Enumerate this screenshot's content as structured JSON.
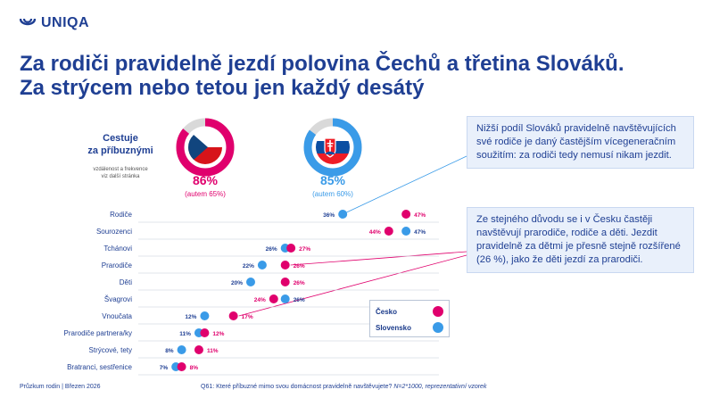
{
  "brand": {
    "logo_text": "UNIQA",
    "logo_icon": "uniqa-logo-icon"
  },
  "title": {
    "line1": "Za rodiči pravidelně jezdí polovina Čechů a třetina Slováků.",
    "line2": "Za strýcem nebo tetou jen každý desátý"
  },
  "side": {
    "heading_line1": "Cestuje",
    "heading_line2": "za příbuznými",
    "sub_line1": "vzdálenost a frekvence",
    "sub_line2": "viz další stránka"
  },
  "countries": [
    {
      "flag_icon": "czech-flag-icon",
      "percent": 0.86,
      "label": "86%",
      "sub": "(autem 65%)",
      "color": "#e0006d"
    },
    {
      "flag_icon": "slovak-flag-icon",
      "percent": 0.85,
      "label": "85%",
      "sub": "(autem 60%)",
      "color": "#3a9be8"
    }
  ],
  "callouts": [
    "Nižší podíl Slováků pravidelně navštěvujících své rodiče je daný častějším vícegeneračním soužitím: za rodiči tedy nemusí nikam jezdit.",
    "Ze stejného důvodu se i v Česku častěji navštěvují prarodiče, rodiče a děti. Jezdit pravidelně za dětmi je přesně stejně rozšířené (26 %), jako že děti jezdí za prarodiči."
  ],
  "legend": {
    "cz": "Česko",
    "sk": "Slovensko"
  },
  "colors": {
    "cz": "#e0006d",
    "sk": "#3a9be8",
    "brand": "#1f3f93"
  },
  "chart_data": {
    "type": "scatter",
    "categories": [
      "Rodiče",
      "Sourozenci",
      "Tchánovi",
      "Prarodiče",
      "Děti",
      "Švagrovi",
      "Vnoučata",
      "Prarodiče partnera/ky",
      "Strýcové, tety",
      "Bratranci, sestřenice"
    ],
    "series": [
      {
        "name": "Česko",
        "values": [
          47,
          44,
          27,
          26,
          26,
          24,
          17,
          12,
          11,
          8
        ],
        "labels": [
          "47%",
          "44%",
          "27%",
          "26%",
          "26%",
          "24%",
          "17%",
          "12%",
          "11%",
          "8%"
        ]
      },
      {
        "name": "Slovensko",
        "values": [
          36,
          47,
          26,
          22,
          20,
          26,
          12,
          11,
          8,
          7
        ],
        "labels": [
          "36%",
          "47%",
          "26%",
          "22%",
          "20%",
          "26%",
          "12%",
          "11%",
          "8%",
          "7%"
        ]
      }
    ],
    "xlim": [
      0,
      60
    ]
  },
  "footer": {
    "left": "Průzkum rodin | Březen 2026",
    "right_main": "Q61: Které příbuzné mimo svou domácnost pravidelně navštěvujete?",
    "right_italic": "N=2*1000, reprezentativní vzorek"
  }
}
